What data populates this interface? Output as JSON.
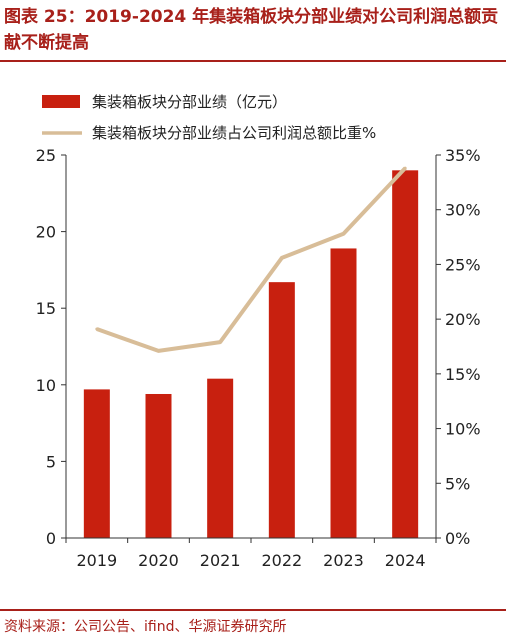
{
  "figure": {
    "title": "图表 25：2019-2024 年集装箱板块分部业绩对公司利润总额贡献不断提高",
    "source": "资料来源：公司公告、ifind、华源证券研究所"
  },
  "colors": {
    "bar": "#c8200f",
    "line": "#d8bd98",
    "accent": "#a8201a",
    "axis": "#333333"
  },
  "chart_data": {
    "type": "bar",
    "categories": [
      "2019",
      "2020",
      "2021",
      "2022",
      "2023",
      "2024"
    ],
    "series": [
      {
        "name": "集装箱板块分部业绩（亿元）",
        "type": "bar",
        "axis": "left",
        "values": [
          9.7,
          9.4,
          10.4,
          16.7,
          18.9,
          24.0
        ]
      },
      {
        "name": "集装箱板块分部业绩占公司利润总额比重%",
        "type": "line",
        "axis": "right",
        "values": [
          19.1,
          17.1,
          17.9,
          25.6,
          27.8,
          33.8
        ]
      }
    ],
    "ylim": [
      0,
      25
    ],
    "y_ticks": [
      "0",
      "5",
      "10",
      "15",
      "20",
      "25"
    ],
    "y2lim": [
      0,
      35
    ],
    "y2_ticks": [
      "0%",
      "5%",
      "10%",
      "15%",
      "20%",
      "25%",
      "30%",
      "35%"
    ],
    "legend": "top-left",
    "grid": false
  }
}
